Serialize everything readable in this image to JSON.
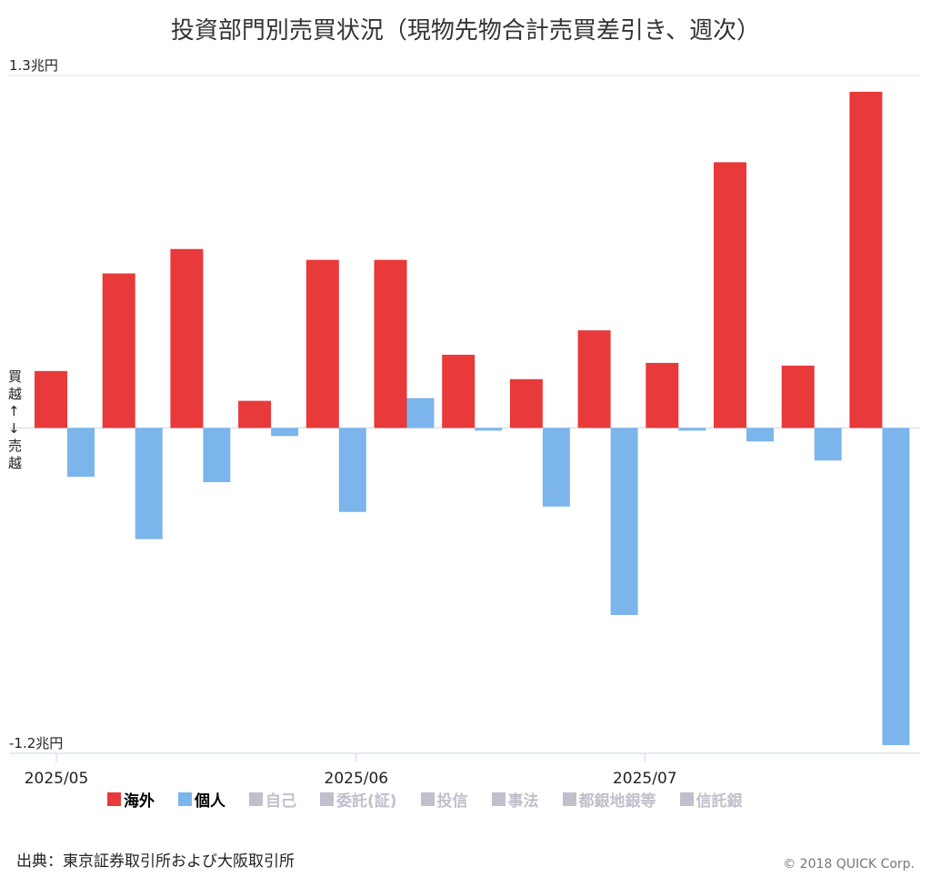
{
  "chart_data": {
    "type": "bar",
    "title": "投資部門別売買状況（現物先物合計売買差引き、週次）",
    "y_label_top": "買越↑",
    "y_label_bottom": "↓売越",
    "categories": [
      null,
      null,
      null,
      null,
      null,
      null,
      null,
      null,
      null,
      null,
      null,
      null,
      null
    ],
    "xticks": [
      {
        "value": -0.125,
        "label": "2025/05"
      },
      {
        "value": 4.29,
        "label": "2025/06"
      },
      {
        "value": 8.54,
        "label": "2025/07"
      }
    ],
    "series": [
      {
        "name": "海外",
        "color": "#e8393b",
        "values": [
          0.21,
          0.57,
          0.66,
          0.1,
          0.62,
          0.62,
          0.27,
          0.18,
          0.36,
          0.24,
          0.98,
          0.23,
          1.24
        ]
      },
      {
        "name": "個人",
        "color": "#7cb5ec",
        "values": [
          -0.18,
          -0.41,
          -0.2,
          -0.03,
          -0.31,
          0.11,
          -0.01,
          -0.29,
          -0.69,
          -0.01,
          -0.05,
          -0.12,
          -1.17
        ]
      }
    ],
    "inactive_legend": [
      "自己",
      "委託(証)",
      "投信",
      "事法",
      "都銀地銀等",
      "信託銀"
    ],
    "inactive_color": "#c0bfcc",
    "ylim": [
      -1.2,
      1.3
    ],
    "yticks": [
      {
        "value": -1.2,
        "label": "-1.2兆円"
      },
      {
        "value": 1.3,
        "label": "1.3兆円"
      }
    ],
    "source": "出典：東京証券取引所および大阪取引所",
    "copyright": "© 2018 QUICK Corp."
  }
}
